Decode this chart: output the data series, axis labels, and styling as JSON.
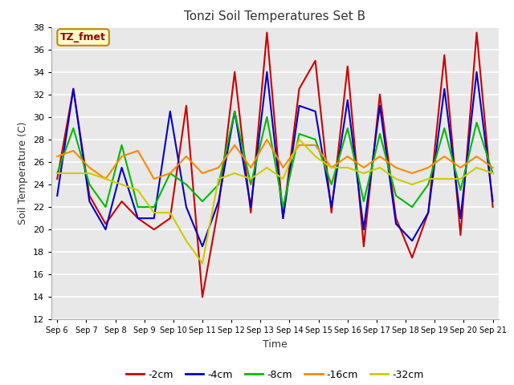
{
  "title": "Tonzi Soil Temperatures Set B",
  "xlabel": "Time",
  "ylabel": "Soil Temperature (C)",
  "ylim": [
    12,
    38
  ],
  "yticks": [
    12,
    14,
    16,
    18,
    20,
    22,
    24,
    26,
    28,
    30,
    32,
    34,
    36,
    38
  ],
  "x_labels": [
    "Sep 6",
    "Sep 7",
    "Sep 8",
    "Sep 9",
    "Sep 10",
    "Sep 11",
    "Sep 12",
    "Sep 13",
    "Sep 14",
    "Sep 15",
    "Sep 16",
    "Sep 17",
    "Sep 18",
    "Sep 19",
    "Sep 20",
    "Sep 21"
  ],
  "annotation_label": "TZ_fmet",
  "series": {
    "-2cm": {
      "color": "#cc0000",
      "data": [
        24.5,
        32.5,
        23.0,
        20.5,
        22.5,
        21.0,
        20.0,
        21.0,
        31.0,
        14.0,
        22.0,
        34.0,
        21.5,
        37.5,
        21.0,
        32.5,
        35.0,
        21.5,
        34.5,
        18.5,
        32.0,
        21.0,
        17.5,
        21.5,
        35.5,
        19.5,
        37.5,
        22.0
      ]
    },
    "-4cm": {
      "color": "#0000cc",
      "data": [
        23.0,
        32.5,
        22.5,
        20.0,
        25.5,
        21.0,
        21.0,
        30.5,
        22.0,
        18.5,
        22.5,
        30.5,
        22.0,
        34.0,
        21.0,
        31.0,
        30.5,
        22.0,
        31.5,
        20.0,
        31.0,
        20.5,
        19.0,
        21.5,
        32.5,
        21.0,
        34.0,
        22.5
      ]
    },
    "-8cm": {
      "color": "#00bb00",
      "data": [
        25.0,
        29.0,
        24.0,
        22.0,
        27.5,
        22.0,
        22.0,
        25.0,
        24.0,
        22.5,
        24.0,
        30.5,
        24.0,
        30.0,
        22.0,
        28.5,
        28.0,
        24.0,
        29.0,
        22.5,
        28.5,
        23.0,
        22.0,
        24.0,
        29.0,
        23.5,
        29.5,
        25.0
      ]
    },
    "-16cm": {
      "color": "#ff8800",
      "data": [
        26.5,
        27.0,
        25.5,
        24.5,
        26.5,
        27.0,
        24.5,
        25.0,
        26.5,
        25.0,
        25.5,
        27.5,
        25.5,
        28.0,
        25.5,
        27.5,
        27.5,
        25.5,
        26.5,
        25.5,
        26.5,
        25.5,
        25.0,
        25.5,
        26.5,
        25.5,
        26.5,
        25.5
      ]
    },
    "-32cm": {
      "color": "#cccc00",
      "data": [
        25.0,
        25.0,
        25.0,
        24.5,
        24.0,
        23.5,
        21.5,
        21.5,
        19.0,
        17.0,
        24.5,
        25.0,
        24.5,
        25.5,
        24.5,
        28.0,
        26.5,
        25.5,
        25.5,
        25.0,
        25.5,
        24.5,
        24.0,
        24.5,
        24.5,
        24.5,
        25.5,
        25.0
      ]
    }
  },
  "fig_bg_color": "#ffffff",
  "plot_bg_color": "#e8e8e8",
  "grid_color": "#ffffff",
  "legend_order": [
    "-2cm",
    "-4cm",
    "-8cm",
    "-16cm",
    "-32cm"
  ]
}
